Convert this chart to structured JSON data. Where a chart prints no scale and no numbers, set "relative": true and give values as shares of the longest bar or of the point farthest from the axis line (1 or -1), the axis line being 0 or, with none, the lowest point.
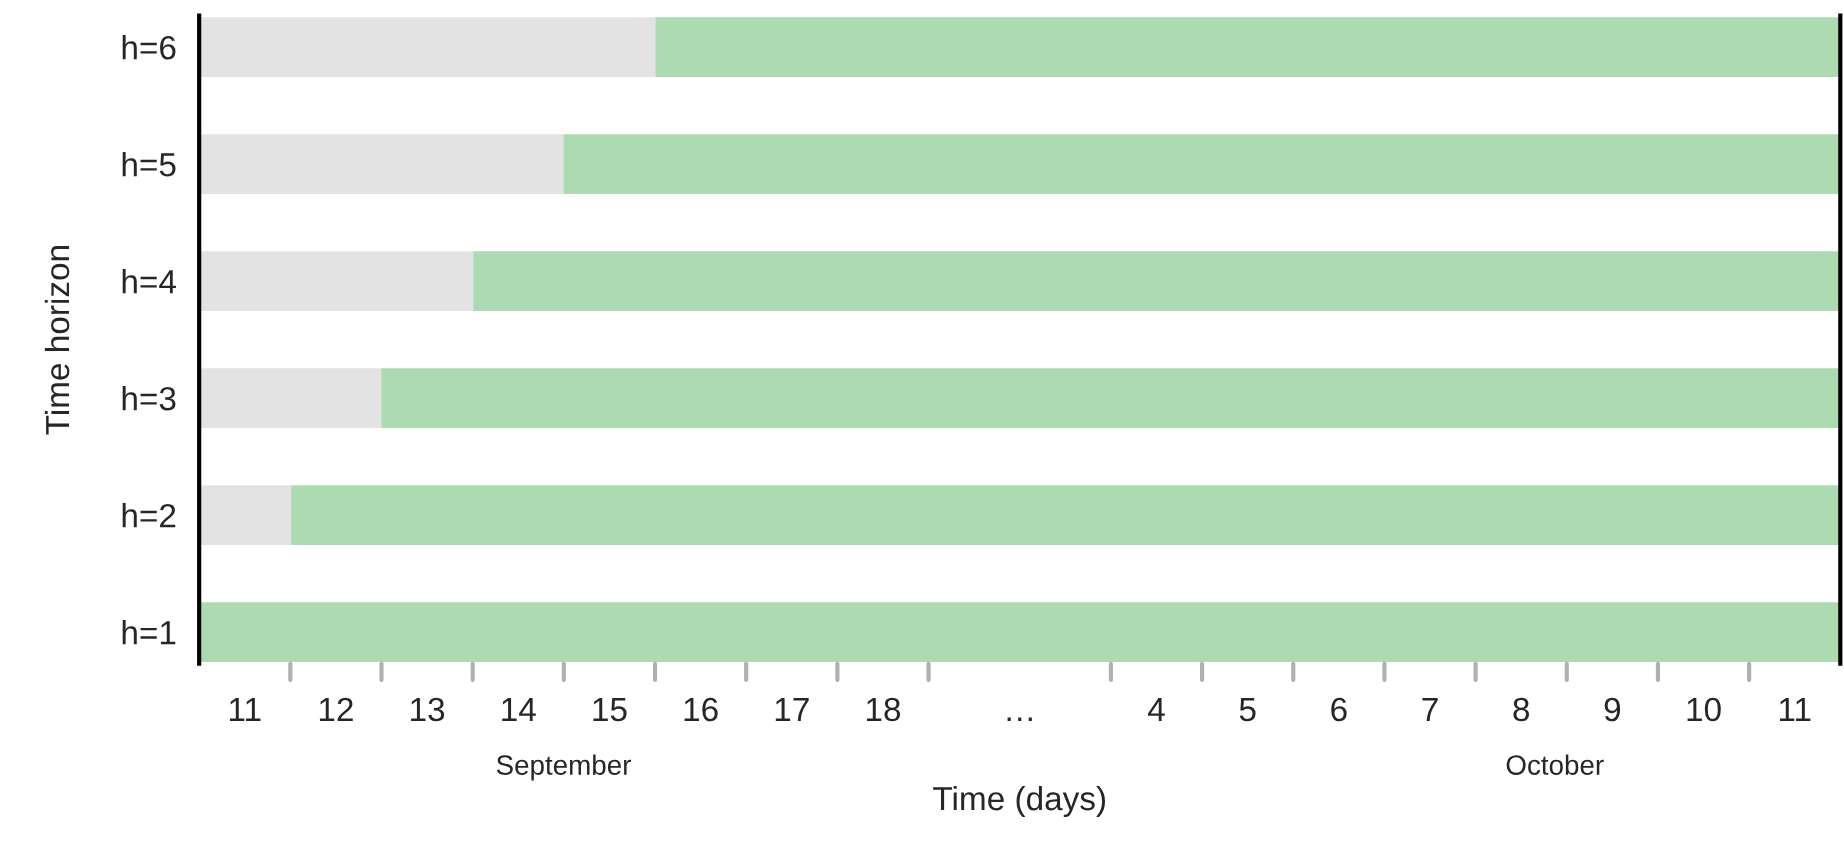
{
  "chart_data": {
    "type": "bar",
    "orientation": "horizontal",
    "stacked": true,
    "relative": true,
    "categories": [
      "h=6",
      "h=5",
      "h=4",
      "h=3",
      "h=2",
      "h=1"
    ],
    "series": [
      {
        "color": "#e3e3e3",
        "values": [
          0.278,
          0.222,
          0.167,
          0.111,
          0.056,
          0
        ]
      },
      {
        "color": "#acdbb1",
        "values": [
          0.722,
          0.778,
          0.833,
          0.889,
          0.944,
          1
        ]
      }
    ],
    "xlabel": "Time (days)",
    "ylabel": "Time horizon",
    "annotations": [
      "11",
      "12",
      "13",
      "14",
      "15",
      "16",
      "17",
      "18",
      "…",
      "4",
      "5",
      "6",
      "7",
      "8",
      "9",
      "10",
      "11",
      "September",
      "October"
    ],
    "grid": false
  }
}
